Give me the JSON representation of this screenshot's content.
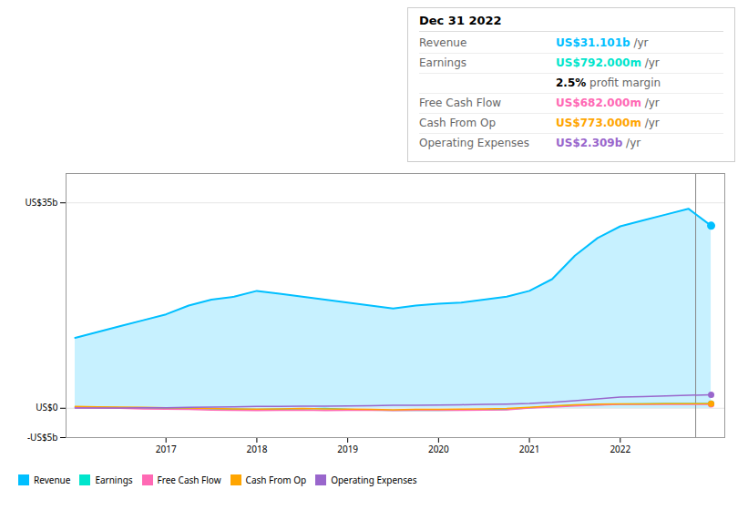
{
  "chart_data": {
    "type": "line",
    "x": [
      2016.0,
      2016.25,
      2016.5,
      2016.75,
      2017.0,
      2017.25,
      2017.5,
      2017.75,
      2018.0,
      2018.25,
      2018.5,
      2018.75,
      2019.0,
      2019.25,
      2019.5,
      2019.75,
      2020.0,
      2020.25,
      2020.5,
      2020.75,
      2021.0,
      2021.25,
      2021.5,
      2021.75,
      2022.0,
      2022.25,
      2022.5,
      2022.75,
      2023.0
    ],
    "xlim": [
      2015.9,
      2023.15
    ],
    "xticks": [
      2017,
      2018,
      2019,
      2020,
      2021,
      2022
    ],
    "ylim": [
      -5000000000,
      40000000000
    ],
    "yticks": [
      {
        "value": -5000000000,
        "label": "-US$5b"
      },
      {
        "value": 0,
        "label": "US$0"
      },
      {
        "value": 35000000000,
        "label": "US$35b"
      }
    ],
    "grid": true,
    "legend": "bottom",
    "vlines": [
      2022.83
    ],
    "series": [
      {
        "name": "Revenue",
        "color": "#00bfff",
        "type": "area",
        "values": [
          12000000000,
          13000000000,
          14000000000,
          15000000000,
          16000000000,
          17500000000,
          18500000000,
          19000000000,
          20000000000,
          19500000000,
          19000000000,
          18500000000,
          18000000000,
          17500000000,
          17000000000,
          17500000000,
          17800000000,
          18000000000,
          18500000000,
          19000000000,
          20000000000,
          22000000000,
          26000000000,
          29000000000,
          31000000000,
          32000000000,
          33000000000,
          34000000000,
          31101000000
        ]
      },
      {
        "name": "Earnings",
        "color": "#00e5cc",
        "values": [
          200000000,
          150000000,
          100000000,
          50000000,
          0,
          -50000000,
          -100000000,
          -150000000,
          -200000000,
          -150000000,
          -100000000,
          -50000000,
          -200000000,
          -300000000,
          -350000000,
          -300000000,
          -350000000,
          -300000000,
          -250000000,
          -200000000,
          100000000,
          300000000,
          500000000,
          600000000,
          700000000,
          750000000,
          780000000,
          790000000,
          792000000
        ]
      },
      {
        "name": "Free Cash Flow",
        "color": "#ff69b4",
        "values": [
          100000000,
          50000000,
          0,
          -100000000,
          -150000000,
          -200000000,
          -300000000,
          -350000000,
          -400000000,
          -350000000,
          -300000000,
          -400000000,
          -350000000,
          -300000000,
          -400000000,
          -350000000,
          -300000000,
          -350000000,
          -300000000,
          -250000000,
          50000000,
          200000000,
          400000000,
          550000000,
          650000000,
          670000000,
          680000000,
          682000000,
          682000000
        ]
      },
      {
        "name": "Cash From Op",
        "color": "#ffa500",
        "values": [
          300000000,
          250000000,
          200000000,
          150000000,
          100000000,
          50000000,
          -50000000,
          -100000000,
          -150000000,
          -100000000,
          -50000000,
          -100000000,
          -150000000,
          -200000000,
          -250000000,
          -200000000,
          -200000000,
          -150000000,
          -100000000,
          -50000000,
          150000000,
          400000000,
          600000000,
          700000000,
          750000000,
          760000000,
          770000000,
          773000000,
          773000000
        ]
      },
      {
        "name": "Operating Expenses",
        "color": "#9966cc",
        "values": [
          50000000,
          50000000,
          50000000,
          100000000,
          100000000,
          150000000,
          200000000,
          250000000,
          300000000,
          300000000,
          350000000,
          350000000,
          400000000,
          450000000,
          500000000,
          500000000,
          550000000,
          600000000,
          650000000,
          700000000,
          800000000,
          1000000000,
          1300000000,
          1600000000,
          1900000000,
          2000000000,
          2100000000,
          2200000000,
          2309000000
        ]
      }
    ],
    "info_box": {
      "title": "Dec 31 2022",
      "rows": [
        {
          "label": "Revenue",
          "value": "US$31.101b",
          "suffix": " /yr",
          "color": "#00bfff"
        },
        {
          "label": "Earnings",
          "value": "US$792.000m",
          "suffix": " /yr",
          "color": "#00e5cc",
          "sub": {
            "value": "2.5%",
            "label": " profit margin"
          }
        },
        {
          "label": "Free Cash Flow",
          "value": "US$682.000m",
          "suffix": " /yr",
          "color": "#ff69b4"
        },
        {
          "label": "Cash From Op",
          "value": "US$773.000m",
          "suffix": " /yr",
          "color": "#ffa500"
        },
        {
          "label": "Operating Expenses",
          "value": "US$2.309b",
          "suffix": " /yr",
          "color": "#9966cc"
        }
      ]
    }
  }
}
